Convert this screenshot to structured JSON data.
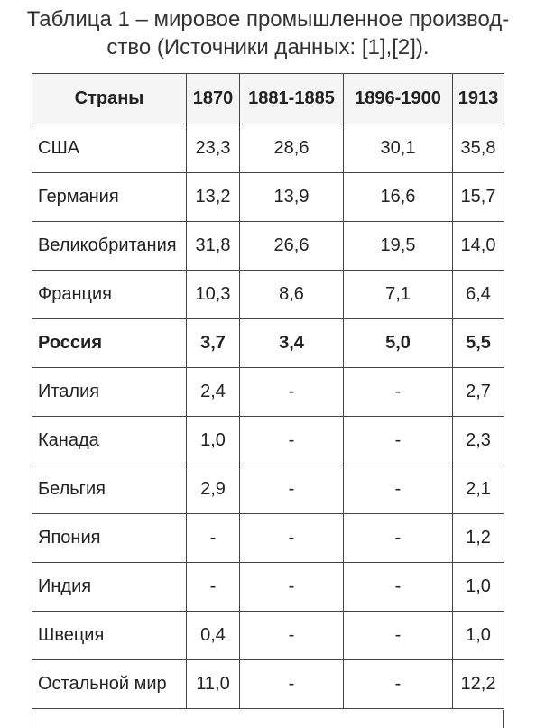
{
  "caption": {
    "line1": "Таблица 1 – мировое промышленное производ-",
    "line2": "ство (Источники данных: [1],[2])."
  },
  "table": {
    "headers": [
      "Страны",
      "1870",
      "1881-1885",
      "1896-1900",
      "1913"
    ],
    "rows": [
      {
        "country": "США",
        "values": [
          "23,3",
          "28,6",
          "30,1",
          "35,8"
        ]
      },
      {
        "country": "Германия",
        "values": [
          "13,2",
          "13,9",
          "16,6",
          "15,7"
        ]
      },
      {
        "country": "Великобритания",
        "values": [
          "31,8",
          "26,6",
          "19,5",
          "14,0"
        ]
      },
      {
        "country": "Франция",
        "values": [
          "10,3",
          "8,6",
          "7,1",
          "6,4"
        ]
      },
      {
        "country": "Россия",
        "values": [
          "3,7",
          "3,4",
          "5,0",
          "5,5"
        ],
        "bold": true
      },
      {
        "country": "Италия",
        "values": [
          "2,4",
          "-",
          "-",
          "2,7"
        ]
      },
      {
        "country": "Канада",
        "values": [
          "1,0",
          "-",
          "-",
          "2,3"
        ]
      },
      {
        "country": "Бельгия",
        "values": [
          "2,9",
          "-",
          "-",
          "2,1"
        ]
      },
      {
        "country": "Япония",
        "values": [
          "-",
          "-",
          "-",
          "1,2"
        ]
      },
      {
        "country": "Индия",
        "values": [
          "-",
          "-",
          "-",
          "1,0"
        ]
      },
      {
        "country": "Швеция",
        "values": [
          "0,4",
          "-",
          "-",
          "1,0"
        ]
      },
      {
        "country": "Остальной мир",
        "values": [
          "11,0",
          "-",
          "-",
          "12,2"
        ]
      }
    ]
  }
}
